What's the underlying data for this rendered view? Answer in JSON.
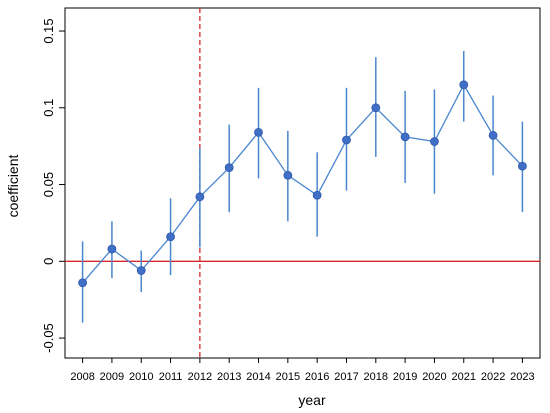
{
  "chart_data": {
    "type": "line",
    "title": "",
    "xlabel": "year",
    "ylabel": "coefficient",
    "x": [
      2008,
      2009,
      2010,
      2011,
      2012,
      2013,
      2014,
      2015,
      2016,
      2017,
      2018,
      2019,
      2020,
      2021,
      2022,
      2023
    ],
    "x_tick_labels": [
      "2008",
      "2009",
      "2010",
      "2011",
      "2012",
      "2013",
      "2014",
      "2015",
      "2016",
      "2017",
      "2018",
      "2019",
      "2020",
      "2021",
      "2022",
      "2023"
    ],
    "series": [
      {
        "values": [
          -0.014,
          0.008,
          -0.006,
          0.016,
          0.042,
          0.061,
          0.084,
          0.056,
          0.043,
          0.079,
          0.1,
          0.081,
          0.078,
          0.115,
          0.082,
          0.062
        ],
        "lower": [
          -0.04,
          -0.011,
          -0.02,
          -0.009,
          0.009,
          0.032,
          0.054,
          0.026,
          0.016,
          0.046,
          0.068,
          0.051,
          0.044,
          0.091,
          0.056,
          0.032
        ],
        "upper": [
          0.013,
          0.026,
          0.007,
          0.041,
          0.074,
          0.089,
          0.113,
          0.085,
          0.071,
          0.113,
          0.133,
          0.111,
          0.112,
          0.137,
          0.108,
          0.091
        ]
      }
    ],
    "ylim": [
      -0.063,
      0.165
    ],
    "y_ticks": [
      -0.05,
      0,
      0.05,
      0.1,
      0.15
    ],
    "y_tick_labels": [
      "-0.05",
      "0",
      "0.05",
      "0.1",
      "0.15"
    ],
    "reference_line_y": 0,
    "reference_line_x": 2012,
    "grid": false,
    "colors": {
      "line": "#4a86d0",
      "marker": "#3f6fc7",
      "errorbar": "#4a86d0",
      "zero_line": "#d62728",
      "vline": "#d62728",
      "axis": "#000000"
    }
  }
}
